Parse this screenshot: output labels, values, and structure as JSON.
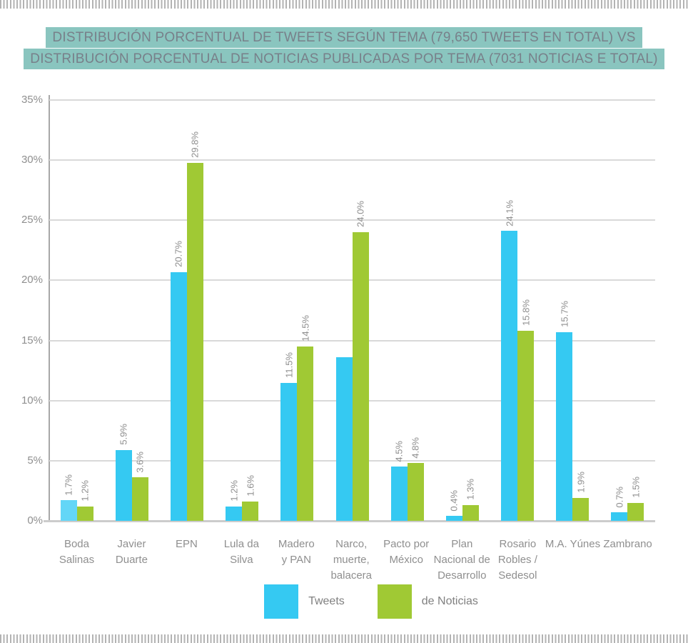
{
  "decorations": {
    "tick_border_color": "#b3b3b3"
  },
  "title": {
    "lines": [
      "DISTRIBUCIÓN PORCENTUAL DE TWEETS SEGÚN TEMA (79,650 TWEETS EN TOTAL) VS",
      "DISTRIBUCIÓN PORCENTUAL DE NOTICIAS PUBLICADAS POR TEMA (7031 NOTICIAS E TOTAL)"
    ],
    "highlight_color": "#8ac5bf",
    "text_color": "#78808a"
  },
  "chart_data": {
    "type": "bar",
    "title": "Distribución porcentual de tweets según tema (79,650 tweets en total) vs distribución porcentual de noticias publicadas por tema (7031 noticias e total)",
    "categories": [
      "Boda Salinas",
      "Javier Duarte",
      "EPN",
      "Lula da Silva",
      "Madero y PAN",
      "Narco, muerte, balacera",
      "Pacto por México",
      "Plan Nacional de Desarrollo",
      "Rosario Robles / Sedesol",
      "M.A. Yúnes",
      "Zambrano"
    ],
    "category_lines": [
      [
        "Boda",
        "Salinas"
      ],
      [
        "Javier",
        "Duarte"
      ],
      [
        "EPN"
      ],
      [
        "Lula da",
        "Silva"
      ],
      [
        "Madero",
        "y PAN"
      ],
      [
        "Narco,",
        "muerte,",
        "balacera"
      ],
      [
        "Pacto por",
        "México"
      ],
      [
        "Plan",
        "Nacional de",
        "Desarrollo"
      ],
      [
        "Rosario",
        "Robles /",
        "Sedesol"
      ],
      [
        "M.A. Yúnes"
      ],
      [
        "Zambrano"
      ]
    ],
    "series": [
      {
        "name": "Tweets",
        "color": "#35c9f2",
        "values": [
          1.7,
          5.9,
          20.7,
          1.2,
          11.5,
          13.6,
          4.5,
          0.4,
          24.1,
          15.7,
          0.7
        ],
        "labels": [
          "1.7%",
          "5.9%",
          "20.7%",
          "1.2%",
          "11.5%",
          "",
          "4.5%",
          "0.4%",
          "24.1%",
          "15.7%",
          "0.7%"
        ]
      },
      {
        "name": "de Noticias",
        "color": "#a0c934",
        "values": [
          1.2,
          3.6,
          29.8,
          1.6,
          14.5,
          24.0,
          4.8,
          1.3,
          15.8,
          1.9,
          1.5
        ],
        "labels": [
          "1.2%",
          "3.6%",
          "29.8%",
          "1.6%",
          "14.5%",
          "24.0%",
          "4.8%",
          "1.3%",
          "15.8%",
          "1.9%",
          "1.5%"
        ]
      }
    ],
    "first_tweets_bar_color": "#63d6f7",
    "ylim": [
      0,
      35
    ],
    "y_ticks": [
      "35%",
      "30%",
      "25%",
      "20%",
      "15%",
      "10%",
      "5%",
      "0%"
    ],
    "grid": true,
    "legend_position": "bottom",
    "grid_color": "#d9d9d9",
    "axis_color": "#a8a8a8",
    "label_color": "#8f8f8f"
  },
  "legend": {
    "items": [
      {
        "label": "Tweets",
        "color": "#35c9f2"
      },
      {
        "label": "de Noticias",
        "color": "#a0c934"
      }
    ]
  }
}
